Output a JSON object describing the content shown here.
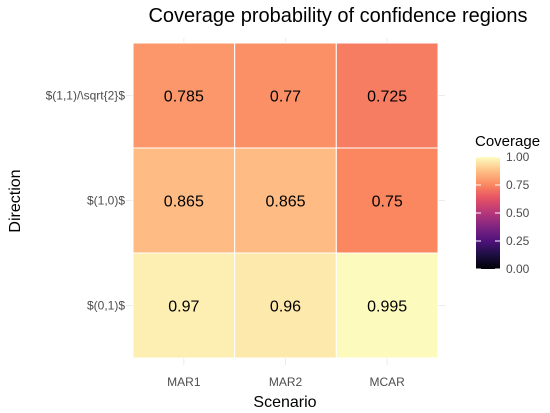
{
  "chart_data": {
    "type": "heatmap",
    "title": "Coverage probability of confidence regions",
    "xlabel": "Scenario",
    "ylabel": "Direction",
    "x_categories": [
      "MAR1",
      "MAR2",
      "MCAR"
    ],
    "y_categories": [
      "$(1,1)/\\sqrt{2}$",
      "$(1,0)$",
      "$(0,1)$"
    ],
    "values": [
      [
        0.785,
        0.77,
        0.725
      ],
      [
        0.865,
        0.865,
        0.75
      ],
      [
        0.97,
        0.96,
        0.995
      ]
    ],
    "cell_labels": [
      [
        "0.785",
        "0.77",
        "0.725"
      ],
      [
        "0.865",
        "0.865",
        "0.75"
      ],
      [
        "0.97",
        "0.96",
        "0.995"
      ]
    ],
    "legend": {
      "title": "Coverage",
      "range": [
        0,
        1
      ],
      "ticks": [
        0,
        0.25,
        0.5,
        0.75,
        1
      ],
      "tick_labels": [
        "0.00",
        "0.25",
        "0.50",
        "0.75",
        "1.00"
      ],
      "position": "right"
    },
    "colormap": "magma",
    "colors": {
      "cell_border": "#ffffff",
      "grid": "#ebebeb"
    },
    "grid": true
  }
}
